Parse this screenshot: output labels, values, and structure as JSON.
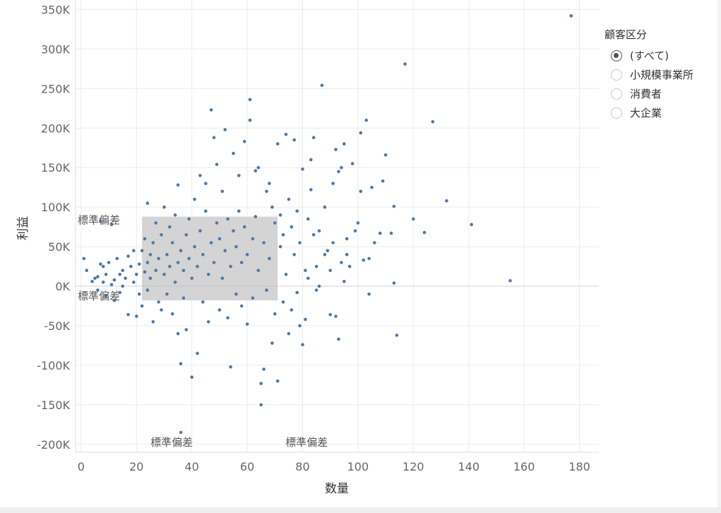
{
  "chart_data": {
    "type": "scatter",
    "title": "",
    "xlabel": "数量",
    "ylabel": "利益",
    "xlim": [
      -2,
      187
    ],
    "ylim": [
      -210000,
      362000
    ],
    "x_ticks": [
      0,
      20,
      40,
      60,
      80,
      100,
      120,
      140,
      160,
      180
    ],
    "x_tick_labels": [
      "0",
      "20",
      "40",
      "60",
      "80",
      "100",
      "120",
      "140",
      "160",
      "180"
    ],
    "y_ticks": [
      350000,
      300000,
      250000,
      200000,
      150000,
      100000,
      50000,
      0,
      -50000,
      -100000,
      -150000,
      -200000
    ],
    "y_tick_labels": [
      "350K",
      "300K",
      "250K",
      "200K",
      "150K",
      "100K",
      "50K",
      "0K",
      "-50K",
      "-100K",
      "-150K",
      "-200K"
    ],
    "grid": true,
    "color": "#4e79a7",
    "band_color": "#d4d4d4",
    "std_band": {
      "x": [
        22,
        71
      ],
      "y": [
        -18000,
        88000
      ]
    },
    "band_labels": [
      "標準偏差",
      "標準偏差",
      "標準偏差",
      "標準偏差"
    ],
    "points": [
      [
        1,
        35000
      ],
      [
        2,
        20000
      ],
      [
        4,
        6000
      ],
      [
        5,
        10000
      ],
      [
        6,
        12000
      ],
      [
        6,
        -5000
      ],
      [
        7,
        28000
      ],
      [
        7,
        82000
      ],
      [
        8,
        25000
      ],
      [
        8,
        5000
      ],
      [
        9,
        15000
      ],
      [
        9,
        -12000
      ],
      [
        10,
        30000
      ],
      [
        11,
        78000
      ],
      [
        11,
        2000
      ],
      [
        12,
        8000
      ],
      [
        12,
        -18000
      ],
      [
        13,
        35000
      ],
      [
        14,
        15000
      ],
      [
        14,
        -8000
      ],
      [
        15,
        0
      ],
      [
        15,
        20000
      ],
      [
        16,
        10000
      ],
      [
        17,
        38000
      ],
      [
        17,
        -36000
      ],
      [
        18,
        25000
      ],
      [
        19,
        5000
      ],
      [
        19,
        45000
      ],
      [
        20,
        15000
      ],
      [
        20,
        -38000
      ],
      [
        21,
        28000
      ],
      [
        21,
        -10000
      ],
      [
        22,
        45000
      ],
      [
        22,
        -25000
      ],
      [
        23,
        18000
      ],
      [
        23,
        60000
      ],
      [
        24,
        30000
      ],
      [
        24,
        -5000
      ],
      [
        24,
        105000
      ],
      [
        25,
        10000
      ],
      [
        25,
        40000
      ],
      [
        26,
        -45000
      ],
      [
        26,
        55000
      ],
      [
        27,
        20000
      ],
      [
        27,
        80000
      ],
      [
        28,
        -20000
      ],
      [
        28,
        35000
      ],
      [
        29,
        -30000
      ],
      [
        29,
        65000
      ],
      [
        30,
        100000
      ],
      [
        30,
        15000
      ],
      [
        31,
        40000
      ],
      [
        31,
        -10000
      ],
      [
        32,
        25000
      ],
      [
        32,
        75000
      ],
      [
        33,
        -35000
      ],
      [
        33,
        55000
      ],
      [
        34,
        5000
      ],
      [
        34,
        90000
      ],
      [
        35,
        30000
      ],
      [
        35,
        -60000
      ],
      [
        35,
        128000
      ],
      [
        36,
        45000
      ],
      [
        36,
        -98000
      ],
      [
        36,
        -185000
      ],
      [
        37,
        20000
      ],
      [
        37,
        -15000
      ],
      [
        38,
        65000
      ],
      [
        38,
        -55000
      ],
      [
        39,
        35000
      ],
      [
        39,
        85000
      ],
      [
        40,
        10000
      ],
      [
        40,
        -115000
      ],
      [
        41,
        110000
      ],
      [
        41,
        50000
      ],
      [
        42,
        25000
      ],
      [
        42,
        -85000
      ],
      [
        43,
        140000
      ],
      [
        43,
        70000
      ],
      [
        44,
        -20000
      ],
      [
        44,
        40000
      ],
      [
        45,
        95000
      ],
      [
        45,
        130000
      ],
      [
        46,
        15000
      ],
      [
        46,
        -45000
      ],
      [
        47,
        55000
      ],
      [
        47,
        223000
      ],
      [
        48,
        188000
      ],
      [
        48,
        30000
      ],
      [
        49,
        154000
      ],
      [
        49,
        80000
      ],
      [
        50,
        -30000
      ],
      [
        50,
        60000
      ],
      [
        51,
        10000
      ],
      [
        51,
        120000
      ],
      [
        52,
        198000
      ],
      [
        52,
        45000
      ],
      [
        53,
        -40000
      ],
      [
        53,
        85000
      ],
      [
        54,
        -102000
      ],
      [
        54,
        25000
      ],
      [
        55,
        168000
      ],
      [
        55,
        70000
      ],
      [
        56,
        -10000
      ],
      [
        56,
        50000
      ],
      [
        57,
        140000
      ],
      [
        57,
        95000
      ],
      [
        58,
        30000
      ],
      [
        58,
        -25000
      ],
      [
        59,
        183000
      ],
      [
        59,
        75000
      ],
      [
        60,
        -48000
      ],
      [
        60,
        40000
      ],
      [
        61,
        236000
      ],
      [
        61,
        210000
      ],
      [
        62,
        60000
      ],
      [
        62,
        -15000
      ],
      [
        63,
        146000
      ],
      [
        63,
        88000
      ],
      [
        64,
        150000
      ],
      [
        64,
        20000
      ],
      [
        65,
        -123000
      ],
      [
        65,
        -150000
      ],
      [
        66,
        -105000
      ],
      [
        66,
        55000
      ],
      [
        67,
        120000
      ],
      [
        67,
        -5000
      ],
      [
        68,
        130000
      ],
      [
        68,
        35000
      ],
      [
        69,
        100000
      ],
      [
        69,
        -72000
      ],
      [
        70,
        80000
      ],
      [
        70,
        -35000
      ],
      [
        71,
        -120000
      ],
      [
        71,
        180000
      ],
      [
        72,
        90000
      ],
      [
        72,
        50000
      ],
      [
        73,
        65000
      ],
      [
        73,
        -20000
      ],
      [
        74,
        192000
      ],
      [
        74,
        15000
      ],
      [
        75,
        110000
      ],
      [
        75,
        -60000
      ],
      [
        76,
        75000
      ],
      [
        76,
        -30000
      ],
      [
        77,
        185000
      ],
      [
        77,
        40000
      ],
      [
        78,
        95000
      ],
      [
        78,
        -8000
      ],
      [
        79,
        55000
      ],
      [
        79,
        -50000
      ],
      [
        80,
        148000
      ],
      [
        80,
        -74000
      ],
      [
        81,
        20000
      ],
      [
        81,
        -42000
      ],
      [
        82,
        85000
      ],
      [
        82,
        10000
      ],
      [
        83,
        122000
      ],
      [
        83,
        160000
      ],
      [
        84,
        188000
      ],
      [
        84,
        65000
      ],
      [
        85,
        25000
      ],
      [
        85,
        -5000
      ],
      [
        86,
        70000
      ],
      [
        86,
        0
      ],
      [
        87,
        254000
      ],
      [
        88,
        40000
      ],
      [
        88,
        100000
      ],
      [
        89,
        45000
      ],
      [
        90,
        -36000
      ],
      [
        90,
        20000
      ],
      [
        91,
        130000
      ],
      [
        91,
        55000
      ],
      [
        92,
        173000
      ],
      [
        92,
        -38000
      ],
      [
        93,
        145000
      ],
      [
        93,
        -67000
      ],
      [
        94,
        150000
      ],
      [
        94,
        30000
      ],
      [
        95,
        6000
      ],
      [
        95,
        180000
      ],
      [
        96,
        40000
      ],
      [
        96,
        60000
      ],
      [
        97,
        25000
      ],
      [
        98,
        155000
      ],
      [
        99,
        70000
      ],
      [
        100,
        80000
      ],
      [
        101,
        120000
      ],
      [
        101,
        194000
      ],
      [
        102,
        33000
      ],
      [
        103,
        210000
      ],
      [
        104,
        35000
      ],
      [
        104,
        -10000
      ],
      [
        105,
        125000
      ],
      [
        106,
        55000
      ],
      [
        108,
        67000
      ],
      [
        109,
        133000
      ],
      [
        110,
        166000
      ],
      [
        112,
        67000
      ],
      [
        113,
        101000
      ],
      [
        113,
        4000
      ],
      [
        114,
        -62000
      ],
      [
        117,
        281000
      ],
      [
        120,
        85000
      ],
      [
        124,
        68000
      ],
      [
        127,
        208000
      ],
      [
        132,
        108000
      ],
      [
        141,
        78000
      ],
      [
        155,
        7000
      ],
      [
        177,
        342000
      ]
    ]
  },
  "legend": {
    "title": "顧客区分",
    "items": [
      "(すべて)",
      "小規模事業所",
      "消費者",
      "大企業"
    ],
    "selected_index": 0
  }
}
